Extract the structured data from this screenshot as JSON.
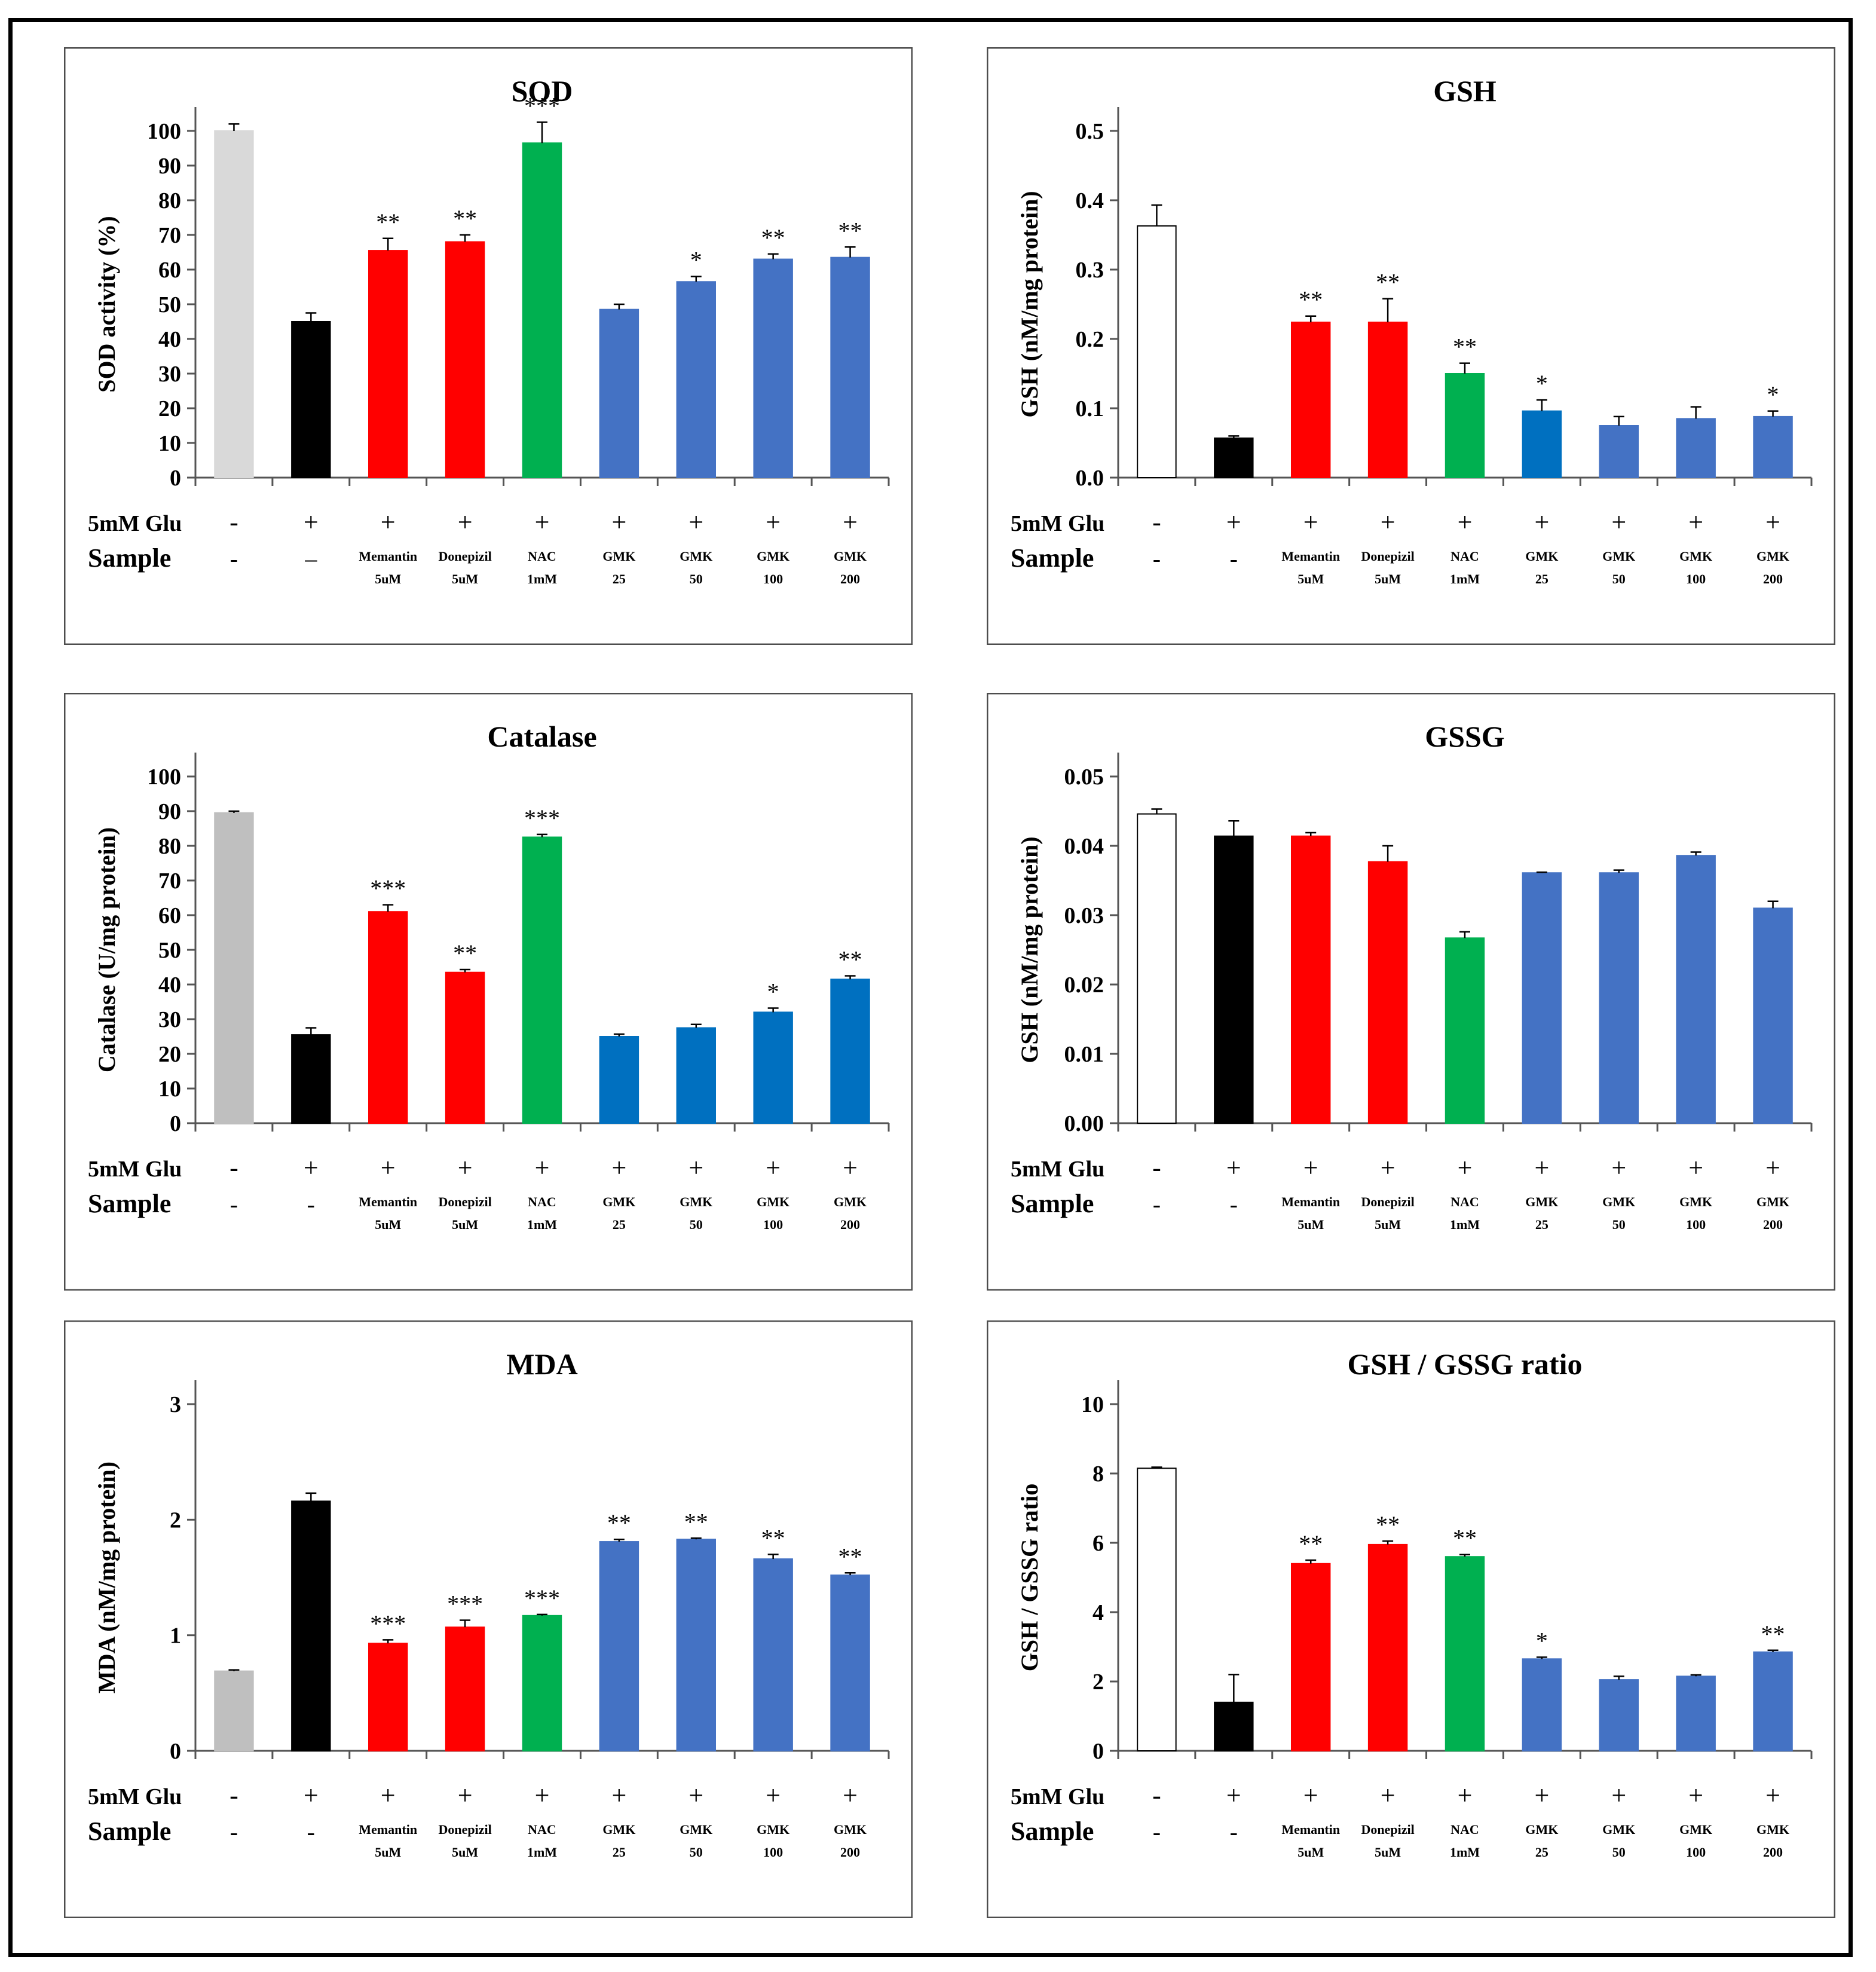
{
  "chart_data": [
    {
      "type": "bar",
      "title": "SOD",
      "ylabel": "SOD activity (%)",
      "ylim": [
        0,
        100
      ],
      "yticks": [
        "0",
        "10",
        "20",
        "30",
        "40",
        "50",
        "60",
        "70",
        "80",
        "90",
        "100"
      ],
      "row1_label": "5mM Glu",
      "row2_label": "Sample",
      "glu": [
        "-",
        "+",
        "+",
        "+",
        "+",
        "+",
        "+",
        "+",
        "+"
      ],
      "sample_top": [
        "-",
        "–",
        "Memantin",
        "Donepizil",
        "NAC",
        "GMK",
        "GMK",
        "GMK",
        "GMK"
      ],
      "sample_bottom": [
        "",
        "",
        "5uM",
        "5uM",
        "1mM",
        "25",
        "50",
        "100",
        "200"
      ],
      "values": [
        100,
        45,
        65.5,
        68,
        96.5,
        48.5,
        56.5,
        63,
        63.5
      ],
      "errors": [
        2.0,
        2.5,
        3.5,
        2.0,
        6.0,
        1.5,
        1.5,
        1.5,
        3.0
      ],
      "sig": [
        "",
        "",
        "**",
        "**",
        "***",
        "",
        "*",
        "**",
        "**"
      ],
      "colors": [
        "#d9d9d9",
        "#000000",
        "#ff0000",
        "#ff0000",
        "#00b050",
        "#4472c4",
        "#4472c4",
        "#4472c4",
        "#4472c4"
      ],
      "grid": false
    },
    {
      "type": "bar",
      "title": "GSH",
      "ylabel": "GSH (nM/mg protein)",
      "ylim": [
        0,
        0.5
      ],
      "yticks": [
        "0.0",
        "0.1",
        "0.2",
        "0.3",
        "0.4",
        "0.5"
      ],
      "row1_label": "5mM Glu",
      "row2_label": "Sample",
      "glu": [
        "-",
        "+",
        "+",
        "+",
        "+",
        "+",
        "+",
        "+",
        "+"
      ],
      "sample_top": [
        "-",
        "-",
        "Memantin",
        "Donepizil",
        "NAC",
        "GMK",
        "GMK",
        "GMK",
        "GMK"
      ],
      "sample_bottom": [
        "",
        "",
        "5uM",
        "5uM",
        "1mM",
        "25",
        "50",
        "100",
        "200"
      ],
      "values": [
        0.363,
        0.057,
        0.224,
        0.224,
        0.15,
        0.096,
        0.075,
        0.085,
        0.088
      ],
      "errors": [
        0.03,
        0.003,
        0.009,
        0.034,
        0.015,
        0.016,
        0.013,
        0.017,
        0.008
      ],
      "sig": [
        "",
        "",
        "**",
        "**",
        "**",
        "*",
        "",
        "",
        "*"
      ],
      "colors": [
        "#ffffff",
        "#000000",
        "#ff0000",
        "#ff0000",
        "#00b050",
        "#0070c0",
        "#4472c4",
        "#4472c4",
        "#4472c4"
      ],
      "grid": false
    },
    {
      "type": "bar",
      "title": "Catalase",
      "ylabel": "Catalase (U/mg protein)",
      "ylim": [
        0,
        100
      ],
      "yticks": [
        "0",
        "10",
        "20",
        "30",
        "40",
        "50",
        "60",
        "70",
        "80",
        "90",
        "100"
      ],
      "row1_label": "5mM Glu",
      "row2_label": "Sample",
      "glu": [
        "-",
        "+",
        "+",
        "+",
        "+",
        "+",
        "+",
        "+",
        "+"
      ],
      "sample_top": [
        "-",
        "-",
        "Memantin",
        "Donepizil",
        "NAC",
        "GMK",
        "GMK",
        "GMK",
        "GMK"
      ],
      "sample_bottom": [
        "",
        "",
        "5uM",
        "5uM",
        "1mM",
        "25",
        "50",
        "100",
        "200"
      ],
      "values": [
        89.5,
        25.5,
        61,
        43.5,
        82.5,
        25,
        27.5,
        32,
        41.5
      ],
      "errors": [
        0.5,
        2.0,
        2.0,
        0.8,
        0.8,
        0.7,
        1.0,
        1.2,
        1.0
      ],
      "sig": [
        "",
        "",
        "***",
        "**",
        "***",
        "",
        "",
        "*",
        "**"
      ],
      "colors": [
        "#bfbfbf",
        "#000000",
        "#ff0000",
        "#ff0000",
        "#00b050",
        "#0070c0",
        "#0070c0",
        "#0070c0",
        "#0070c0"
      ],
      "grid": false
    },
    {
      "type": "bar",
      "title": "GSSG",
      "ylabel": "GSH (nM/mg protein)",
      "ylim": [
        0,
        0.05
      ],
      "yticks": [
        "0.00",
        "0.01",
        "0.02",
        "0.03",
        "0.04",
        "0.05"
      ],
      "row1_label": "5mM Glu",
      "row2_label": "Sample",
      "glu": [
        "-",
        "+",
        "+",
        "+",
        "+",
        "+",
        "+",
        "+",
        "+"
      ],
      "sample_top": [
        "-",
        "-",
        "Memantin",
        "Donepizil",
        "NAC",
        "GMK",
        "GMK",
        "GMK",
        "GMK"
      ],
      "sample_bottom": [
        "",
        "",
        "5uM",
        "5uM",
        "1mM",
        "25",
        "50",
        "100",
        "200"
      ],
      "values": [
        0.0446,
        0.0414,
        0.0414,
        0.0377,
        0.0267,
        0.0361,
        0.0361,
        0.0386,
        0.031
      ],
      "errors": [
        0.0007,
        0.0022,
        0.0005,
        0.0023,
        0.0009,
        0.0001,
        0.0004,
        0.0005,
        0.001
      ],
      "sig": [
        "",
        "",
        "",
        "",
        "",
        "",
        "",
        "",
        ""
      ],
      "colors": [
        "#ffffff",
        "#000000",
        "#ff0000",
        "#ff0000",
        "#00b050",
        "#4472c4",
        "#4472c4",
        "#4472c4",
        "#4472c4"
      ],
      "grid": false
    },
    {
      "type": "bar",
      "title": "MDA",
      "ylabel": "MDA (nM/mg protein)",
      "ylim": [
        0,
        3
      ],
      "yticks": [
        "0",
        "1",
        "2",
        "3"
      ],
      "row1_label": "5mM Glu",
      "row2_label": "Sample",
      "glu": [
        "-",
        "+",
        "+",
        "+",
        "+",
        "+",
        "+",
        "+",
        "+"
      ],
      "sample_top": [
        "-",
        "-",
        "Memantin",
        "Donepizil",
        "NAC",
        "GMK",
        "GMK",
        "GMK",
        "GMK"
      ],
      "sample_bottom": [
        "",
        "",
        "5uM",
        "5uM",
        "1mM",
        "25",
        "50",
        "100",
        "200"
      ],
      "values": [
        0.69,
        2.16,
        0.93,
        1.07,
        1.17,
        1.81,
        1.83,
        1.66,
        1.52
      ],
      "errors": [
        0.01,
        0.07,
        0.03,
        0.06,
        0.01,
        0.02,
        0.01,
        0.04,
        0.02
      ],
      "sig": [
        "",
        "",
        "***",
        "***",
        "***",
        "**",
        "**",
        "**",
        "**"
      ],
      "colors": [
        "#bfbfbf",
        "#000000",
        "#ff0000",
        "#ff0000",
        "#00b050",
        "#4472c4",
        "#4472c4",
        "#4472c4",
        "#4472c4"
      ],
      "grid": false
    },
    {
      "type": "bar",
      "title": "GSH / GSSG ratio",
      "ylabel": "GSH / GSSG ratio",
      "ylim": [
        0,
        10
      ],
      "yticks": [
        "0",
        "2",
        "4",
        "6",
        "8",
        "10"
      ],
      "row1_label": "5mM Glu",
      "row2_label": "Sample",
      "glu": [
        "-",
        "+",
        "+",
        "+",
        "+",
        "+",
        "+",
        "+",
        "+"
      ],
      "sample_top": [
        "-",
        "-",
        "Memantin",
        "Donepizil",
        "NAC",
        "GMK",
        "GMK",
        "GMK",
        "GMK"
      ],
      "sample_bottom": [
        "",
        "",
        "5uM",
        "5uM",
        "1mM",
        "25",
        "50",
        "100",
        "200"
      ],
      "values": [
        8.15,
        1.4,
        5.4,
        5.95,
        5.6,
        2.65,
        2.05,
        2.15,
        2.85
      ],
      "errors": [
        0.03,
        0.8,
        0.1,
        0.1,
        0.06,
        0.05,
        0.1,
        0.04,
        0.05
      ],
      "sig": [
        "",
        "",
        "**",
        "**",
        "**",
        "*",
        "",
        "",
        "**"
      ],
      "colors": [
        "#ffffff",
        "#000000",
        "#ff0000",
        "#ff0000",
        "#00b050",
        "#4472c4",
        "#4472c4",
        "#4472c4",
        "#4472c4"
      ],
      "grid": false
    }
  ]
}
